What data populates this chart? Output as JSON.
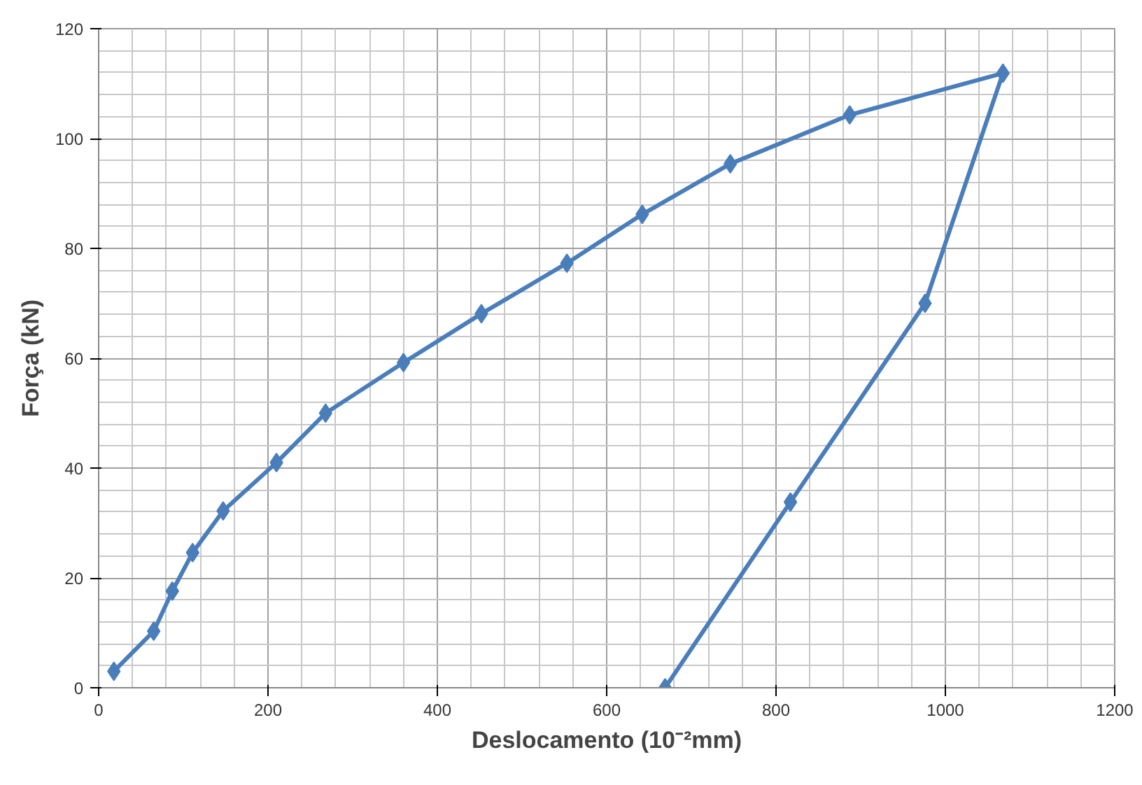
{
  "chart_data": {
    "type": "line",
    "xlabel": "Deslocamento (10⁻²mm)",
    "ylabel": "Força (kN)",
    "x": [
      18,
      65,
      87,
      111,
      147,
      210,
      268,
      360,
      452,
      553,
      642,
      746,
      887,
      1068,
      976,
      817,
      669
    ],
    "series": [
      {
        "color": "#4a7ebb",
        "values": [
          3,
          10.3,
          17.6,
          24.6,
          32.2,
          41,
          50,
          59.2,
          68.1,
          77.3,
          86.2,
          95.4,
          104.3,
          111.9,
          70,
          33.8,
          0
        ]
      }
    ],
    "xlim": [
      0,
      1200
    ],
    "ylim": [
      0,
      120
    ],
    "xticks": [
      0,
      200,
      400,
      600,
      800,
      1000,
      1200
    ],
    "yticks": [
      0,
      20,
      40,
      60,
      80,
      100,
      120
    ],
    "grid": true,
    "marker": "diamond",
    "line_style": "solid"
  }
}
